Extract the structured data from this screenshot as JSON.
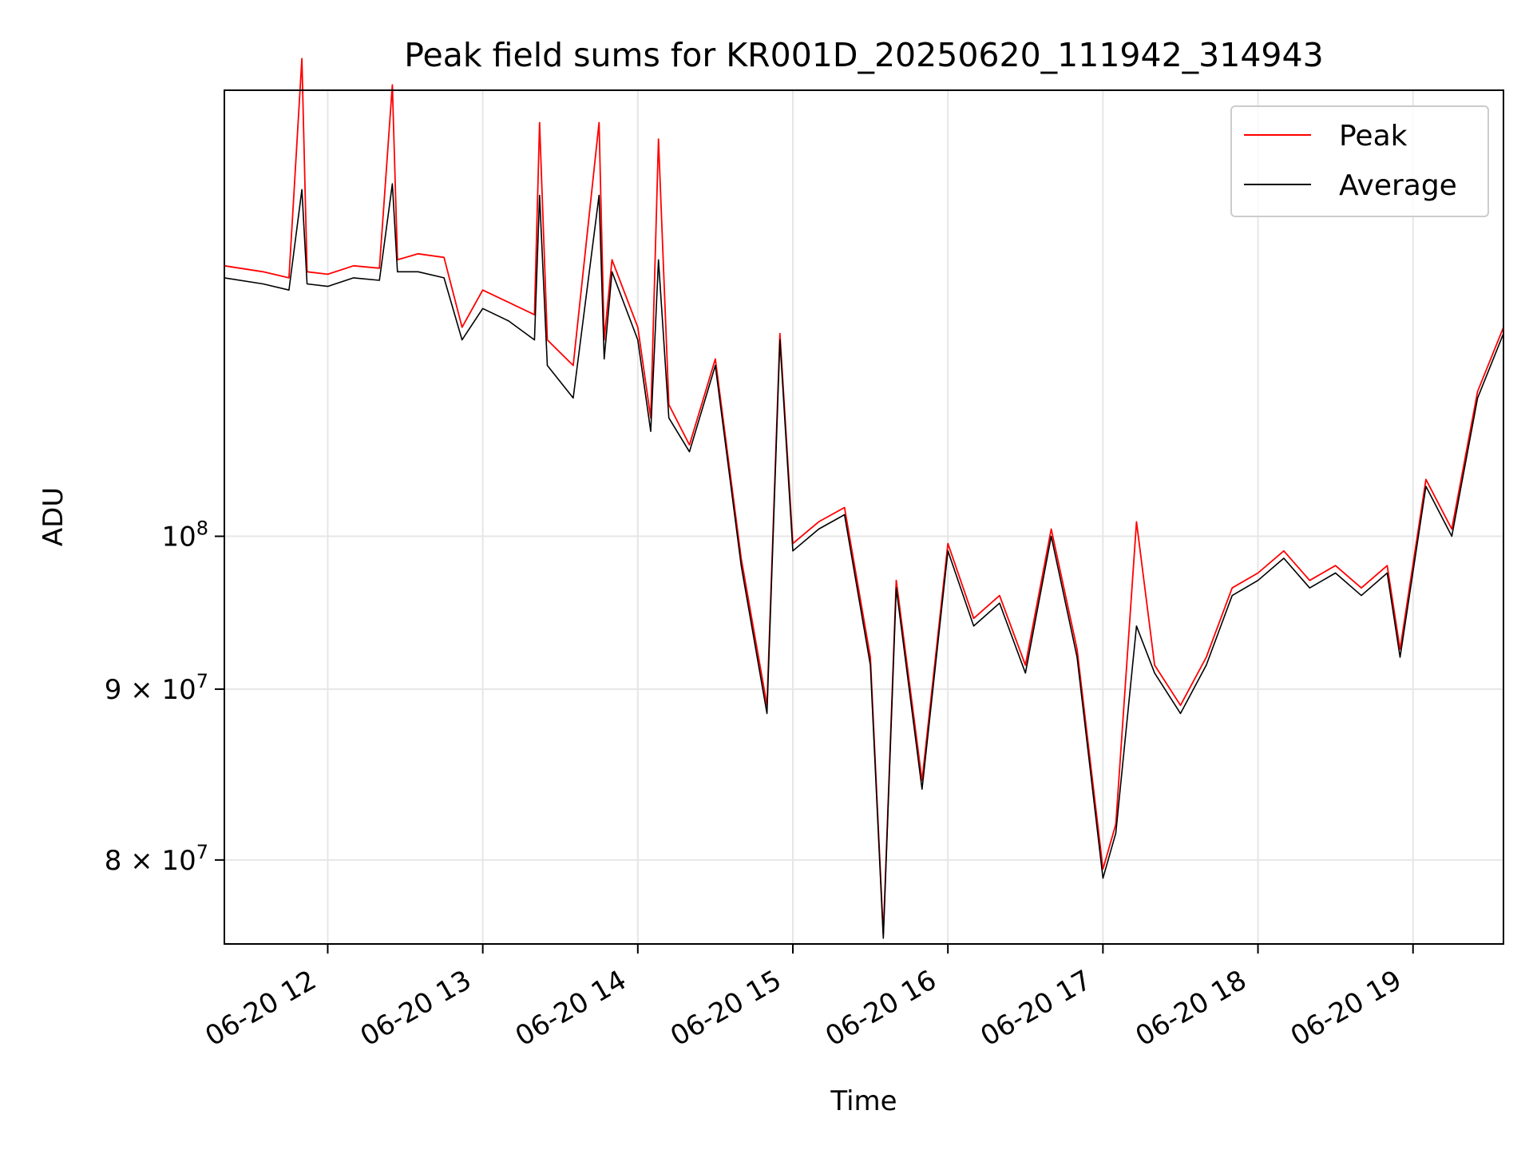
{
  "chart_data": {
    "type": "line",
    "title": "Peak field sums for KR001D_20250620_111942_314943",
    "xlabel": "Time",
    "ylabel": "ADU",
    "yscale": "log",
    "ylim": [
      75500000,
      136000000
    ],
    "xlim": [
      "2025-06-20 11:20",
      "2025-06-20 19:35"
    ],
    "grid": true,
    "legend_position": "top-right",
    "x_ticks": [
      "06-20 12",
      "06-20 13",
      "06-20 14",
      "06-20 15",
      "06-20 16",
      "06-20 17",
      "06-20 18",
      "06-20 19"
    ],
    "y_ticks": [
      {
        "value": 80000000,
        "label": "8 × 10",
        "exp": "7"
      },
      {
        "value": 90000000,
        "label": "9 × 10",
        "exp": "7"
      },
      {
        "value": 100000000,
        "label": "10",
        "exp": "8"
      }
    ],
    "series": [
      {
        "name": "Peak",
        "color": "#ff0000",
        "points": [
          [
            "2025-06-20 11:20",
            120500000
          ],
          [
            "2025-06-20 11:35",
            120000000
          ],
          [
            "2025-06-20 11:45",
            119500000
          ],
          [
            "2025-06-20 11:50",
            139000000
          ],
          [
            "2025-06-20 11:52",
            120000000
          ],
          [
            "2025-06-20 12:00",
            119800000
          ],
          [
            "2025-06-20 12:10",
            120500000
          ],
          [
            "2025-06-20 12:20",
            120300000
          ],
          [
            "2025-06-20 12:25",
            136500000
          ],
          [
            "2025-06-20 12:27",
            121000000
          ],
          [
            "2025-06-20 12:35",
            121500000
          ],
          [
            "2025-06-20 12:45",
            121200000
          ],
          [
            "2025-06-20 12:52",
            115500000
          ],
          [
            "2025-06-20 13:00",
            118500000
          ],
          [
            "2025-06-20 13:10",
            117500000
          ],
          [
            "2025-06-20 13:20",
            116500000
          ],
          [
            "2025-06-20 13:22",
            133000000
          ],
          [
            "2025-06-20 13:25",
            114500000
          ],
          [
            "2025-06-20 13:35",
            112500000
          ],
          [
            "2025-06-20 13:45",
            133000000
          ],
          [
            "2025-06-20 13:47",
            114500000
          ],
          [
            "2025-06-20 13:50",
            121000000
          ],
          [
            "2025-06-20 14:00",
            115500000
          ],
          [
            "2025-06-20 14:05",
            108500000
          ],
          [
            "2025-06-20 14:08",
            131500000
          ],
          [
            "2025-06-20 14:12",
            109500000
          ],
          [
            "2025-06-20 14:20",
            106500000
          ],
          [
            "2025-06-20 14:30",
            113000000
          ],
          [
            "2025-06-20 14:40",
            98500000
          ],
          [
            "2025-06-20 14:50",
            89000000
          ],
          [
            "2025-06-20 14:55",
            115000000
          ],
          [
            "2025-06-20 15:00",
            99500000
          ],
          [
            "2025-06-20 15:10",
            101000000
          ],
          [
            "2025-06-20 15:20",
            102000000
          ],
          [
            "2025-06-20 15:30",
            92000000
          ],
          [
            "2025-06-20 15:35",
            76000000
          ],
          [
            "2025-06-20 15:40",
            97000000
          ],
          [
            "2025-06-20 15:50",
            84500000
          ],
          [
            "2025-06-20 16:00",
            99500000
          ],
          [
            "2025-06-20 16:10",
            94500000
          ],
          [
            "2025-06-20 16:20",
            96000000
          ],
          [
            "2025-06-20 16:30",
            91500000
          ],
          [
            "2025-06-20 16:40",
            100500000
          ],
          [
            "2025-06-20 16:50",
            92500000
          ],
          [
            "2025-06-20 17:00",
            79500000
          ],
          [
            "2025-06-20 17:05",
            82000000
          ],
          [
            "2025-06-20 17:13",
            101000000
          ],
          [
            "2025-06-20 17:20",
            91500000
          ],
          [
            "2025-06-20 17:30",
            89000000
          ],
          [
            "2025-06-20 17:40",
            92000000
          ],
          [
            "2025-06-20 17:50",
            96500000
          ],
          [
            "2025-06-20 18:00",
            97500000
          ],
          [
            "2025-06-20 18:10",
            99000000
          ],
          [
            "2025-06-20 18:20",
            97000000
          ],
          [
            "2025-06-20 18:30",
            98000000
          ],
          [
            "2025-06-20 18:40",
            96500000
          ],
          [
            "2025-06-20 18:50",
            98000000
          ],
          [
            "2025-06-20 18:55",
            92500000
          ],
          [
            "2025-06-20 19:05",
            104000000
          ],
          [
            "2025-06-20 19:15",
            100500000
          ],
          [
            "2025-06-20 19:25",
            110500000
          ],
          [
            "2025-06-20 19:35",
            115500000
          ]
        ]
      },
      {
        "name": "Average",
        "color": "#000000",
        "points": [
          [
            "2025-06-20 11:20",
            119500000
          ],
          [
            "2025-06-20 11:35",
            119000000
          ],
          [
            "2025-06-20 11:45",
            118500000
          ],
          [
            "2025-06-20 11:50",
            127000000
          ],
          [
            "2025-06-20 11:52",
            119000000
          ],
          [
            "2025-06-20 12:00",
            118800000
          ],
          [
            "2025-06-20 12:10",
            119500000
          ],
          [
            "2025-06-20 12:20",
            119300000
          ],
          [
            "2025-06-20 12:25",
            127500000
          ],
          [
            "2025-06-20 12:27",
            120000000
          ],
          [
            "2025-06-20 12:35",
            120000000
          ],
          [
            "2025-06-20 12:45",
            119500000
          ],
          [
            "2025-06-20 12:52",
            114500000
          ],
          [
            "2025-06-20 13:00",
            117000000
          ],
          [
            "2025-06-20 13:10",
            116000000
          ],
          [
            "2025-06-20 13:20",
            114500000
          ],
          [
            "2025-06-20 13:22",
            126500000
          ],
          [
            "2025-06-20 13:25",
            112500000
          ],
          [
            "2025-06-20 13:35",
            110000000
          ],
          [
            "2025-06-20 13:45",
            126500000
          ],
          [
            "2025-06-20 13:47",
            113000000
          ],
          [
            "2025-06-20 13:50",
            120000000
          ],
          [
            "2025-06-20 14:00",
            114500000
          ],
          [
            "2025-06-20 14:05",
            107500000
          ],
          [
            "2025-06-20 14:08",
            121000000
          ],
          [
            "2025-06-20 14:12",
            108500000
          ],
          [
            "2025-06-20 14:20",
            106000000
          ],
          [
            "2025-06-20 14:30",
            112500000
          ],
          [
            "2025-06-20 14:40",
            98000000
          ],
          [
            "2025-06-20 14:50",
            88500000
          ],
          [
            "2025-06-20 14:55",
            114500000
          ],
          [
            "2025-06-20 15:00",
            99000000
          ],
          [
            "2025-06-20 15:10",
            100500000
          ],
          [
            "2025-06-20 15:20",
            101500000
          ],
          [
            "2025-06-20 15:30",
            91500000
          ],
          [
            "2025-06-20 15:35",
            75800000
          ],
          [
            "2025-06-20 15:40",
            96500000
          ],
          [
            "2025-06-20 15:50",
            84000000
          ],
          [
            "2025-06-20 16:00",
            99000000
          ],
          [
            "2025-06-20 16:10",
            94000000
          ],
          [
            "2025-06-20 16:20",
            95500000
          ],
          [
            "2025-06-20 16:30",
            91000000
          ],
          [
            "2025-06-20 16:40",
            100000000
          ],
          [
            "2025-06-20 16:50",
            92000000
          ],
          [
            "2025-06-20 17:00",
            79000000
          ],
          [
            "2025-06-20 17:05",
            81500000
          ],
          [
            "2025-06-20 17:13",
            94000000
          ],
          [
            "2025-06-20 17:20",
            91000000
          ],
          [
            "2025-06-20 17:30",
            88500000
          ],
          [
            "2025-06-20 17:40",
            91500000
          ],
          [
            "2025-06-20 17:50",
            96000000
          ],
          [
            "2025-06-20 18:00",
            97000000
          ],
          [
            "2025-06-20 18:10",
            98500000
          ],
          [
            "2025-06-20 18:20",
            96500000
          ],
          [
            "2025-06-20 18:30",
            97500000
          ],
          [
            "2025-06-20 18:40",
            96000000
          ],
          [
            "2025-06-20 18:50",
            97500000
          ],
          [
            "2025-06-20 18:55",
            92000000
          ],
          [
            "2025-06-20 19:05",
            103500000
          ],
          [
            "2025-06-20 19:15",
            100000000
          ],
          [
            "2025-06-20 19:25",
            110000000
          ],
          [
            "2025-06-20 19:35",
            115000000
          ]
        ]
      }
    ]
  }
}
